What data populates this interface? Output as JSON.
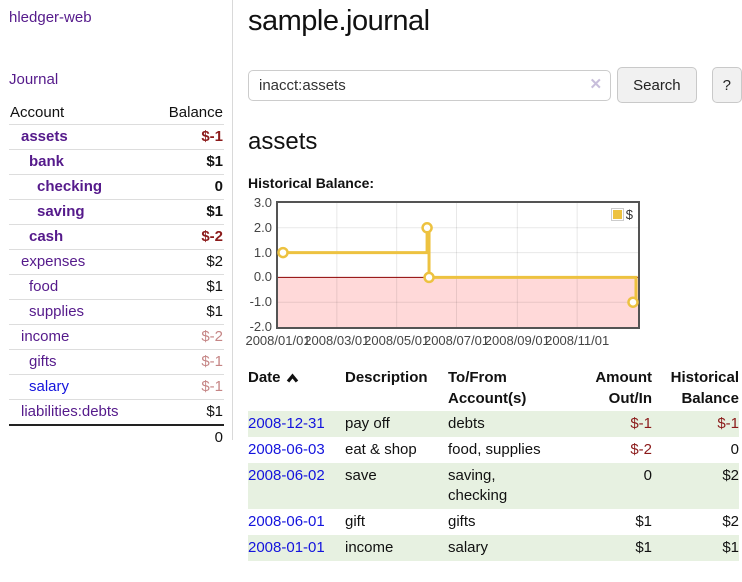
{
  "sidebar": {
    "app_title": "hledger-web",
    "nav": {
      "journal": "Journal"
    },
    "table": {
      "account_header": "Account",
      "balance_header": "Balance",
      "rows": [
        {
          "name": "assets",
          "indent": 1,
          "bold": true,
          "balance": "$-1",
          "balance_style": "neg"
        },
        {
          "name": "bank",
          "indent": 2,
          "bold": true,
          "balance": "$1",
          "balance_style": "pos"
        },
        {
          "name": "checking",
          "indent": 3,
          "bold": true,
          "balance": "0",
          "balance_style": "pos"
        },
        {
          "name": "saving",
          "indent": 3,
          "bold": true,
          "balance": "$1",
          "balance_style": "pos"
        },
        {
          "name": "cash",
          "indent": 2,
          "bold": true,
          "balance": "$-2",
          "balance_style": "neg"
        },
        {
          "name": "expenses",
          "indent": 1,
          "bold": false,
          "balance": "$2",
          "balance_style": "pos"
        },
        {
          "name": "food",
          "indent": 2,
          "bold": false,
          "balance": "$1",
          "balance_style": "pos"
        },
        {
          "name": "supplies",
          "indent": 2,
          "bold": false,
          "balance": "$1",
          "balance_style": "pos"
        },
        {
          "name": "income",
          "indent": 1,
          "bold": false,
          "balance": "$-2",
          "balance_style": "neg-faint"
        },
        {
          "name": "gifts",
          "indent": 2,
          "bold": false,
          "balance": "$-1",
          "balance_style": "neg-faint"
        },
        {
          "name": "salary",
          "indent": 2,
          "bold": false,
          "balance": "$-1",
          "balance_style": "neg-faint",
          "link_color": "blue"
        },
        {
          "name": "liabilities:debts",
          "indent": 1,
          "bold": false,
          "balance": "$1",
          "balance_style": "pos"
        }
      ],
      "total": "0"
    }
  },
  "main": {
    "title": "sample.journal",
    "search": {
      "value": "inacct:assets",
      "clear_icon": "✕",
      "search_button": "Search",
      "help_button": "?"
    },
    "account_heading": "assets",
    "section_label": "Historical Balance:"
  },
  "chart_data": {
    "type": "line",
    "style": "step",
    "title": "Historical Balance:",
    "series": [
      {
        "name": "$",
        "color": "#edc240",
        "points": [
          [
            "2008-01-01",
            1.0
          ],
          [
            "2008-06-01",
            2.0
          ],
          [
            "2008-06-03",
            0.0
          ],
          [
            "2008-12-31",
            -1.0
          ]
        ]
      }
    ],
    "x_range": [
      "2008-01-01",
      "2008-12-31"
    ],
    "x_tick_dates": [
      "2008-01-01",
      "2008-03-01",
      "2008-05-01",
      "2008-07-01",
      "2008-09-01",
      "2008-11-01"
    ],
    "x_tick_labels": [
      "2008/01/01",
      "2008/03/01",
      "2008/05/01",
      "2008/07/01",
      "2008/09/01",
      "2008/11/01"
    ],
    "y_tick_labels": [
      "3.0",
      "2.0",
      "1.0",
      "0.0",
      "-1.0",
      "-2.0"
    ],
    "y_ticks": [
      3,
      2,
      1,
      0,
      -1,
      -2
    ],
    "ylim": [
      -2,
      3
    ],
    "grid": true,
    "legend_position": "top-right",
    "negative_region_color": "#ffd9d9",
    "zero_line_color": "#8b0000"
  },
  "register": {
    "headers": {
      "date": "Date",
      "description": "Description",
      "accounts": "To/From Account(s)",
      "amount": "Amount Out/In",
      "balance": "Historical Balance"
    },
    "sort_icon": "chevron-up",
    "rows": [
      {
        "date": "2008-12-31",
        "description": "pay off",
        "accounts": "debts",
        "amount": "$-1",
        "amount_negative": true,
        "balance": "$-1",
        "balance_negative": true
      },
      {
        "date": "2008-06-03",
        "description": "eat & shop",
        "accounts": "food, supplies",
        "amount": "$-2",
        "amount_negative": true,
        "balance": "0",
        "balance_negative": false
      },
      {
        "date": "2008-06-02",
        "description": "save",
        "accounts": "saving, checking",
        "amount": "0",
        "amount_negative": false,
        "balance": "$2",
        "balance_negative": false
      },
      {
        "date": "2008-06-01",
        "description": "gift",
        "accounts": "gifts",
        "amount": "$1",
        "amount_negative": false,
        "balance": "$2",
        "balance_negative": false
      },
      {
        "date": "2008-01-01",
        "description": "income",
        "accounts": "salary",
        "amount": "$1",
        "amount_negative": false,
        "balance": "$1",
        "balance_negative": false
      }
    ]
  },
  "colors": {
    "link_purple": "#551a8b",
    "link_blue": "#1414dd",
    "negative": "#8b1a1a",
    "negative_faint": "#c58585",
    "row_green": "#e7f1e1",
    "chart_gold": "#edc240",
    "chart_negative_region": "#ffd9d9",
    "chart_zero_line": "#8b0000"
  }
}
